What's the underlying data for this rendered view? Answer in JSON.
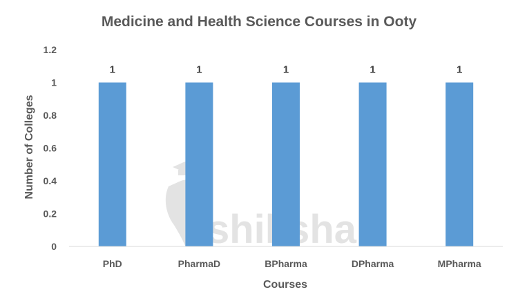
{
  "chart_data": {
    "type": "bar",
    "title": "Medicine and Health Science Courses in Ooty",
    "xlabel": "Courses",
    "ylabel": "Number of Colleges",
    "categories": [
      "PhD",
      "PharmaD",
      "BPharma",
      "DPharma",
      "MPharma"
    ],
    "values": [
      1,
      1,
      1,
      1,
      1
    ],
    "data_labels": [
      "1",
      "1",
      "1",
      "1",
      "1"
    ],
    "ylim": [
      0,
      1.2
    ],
    "yticks": [
      "0",
      "0.2",
      "0.4",
      "0.6",
      "0.8",
      "1",
      "1.2"
    ],
    "grid": false,
    "legend": "none",
    "bar_color": "#5b9bd5",
    "axis_color": "#d9d9d9"
  },
  "watermark": {
    "text": "shiksha",
    "icon": "graduation-cap-icon",
    "color": "#e3e3e3"
  }
}
